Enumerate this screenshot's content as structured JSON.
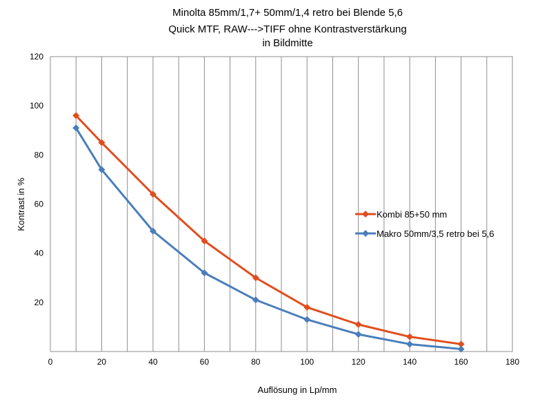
{
  "chart_data": {
    "type": "line",
    "title_lines": [
      "Minolta 85mm/1,7+ 50mm/1,4 retro bei Blende 5,6",
      "Quick MTF,   RAW--->TIFF  ohne Kontrastverstärkung",
      "in Bildmitte"
    ],
    "xlabel": "Auflösung in Lp/mm",
    "ylabel": "Kontrast in %",
    "xlim": [
      0,
      180
    ],
    "ylim": [
      0,
      120
    ],
    "x_ticks": [
      0,
      20,
      40,
      60,
      80,
      100,
      120,
      140,
      160,
      180
    ],
    "y_ticks": [
      20,
      40,
      60,
      80,
      100,
      120
    ],
    "grid": {
      "vertical": true,
      "vertical_step": 10,
      "horizontal": false
    },
    "legend_position": "right",
    "series": [
      {
        "name": "Kombi  85+50 mm",
        "color": "#e04e1f",
        "marker": "diamond",
        "x": [
          10,
          20,
          40,
          60,
          80,
          100,
          120,
          140,
          160
        ],
        "y": [
          96,
          85,
          64,
          45,
          30,
          18,
          11,
          6,
          3
        ]
      },
      {
        "name": "Makro 50mm/3,5 retro bei 5,6",
        "color": "#4a7ebb",
        "marker": "diamond",
        "x": [
          10,
          20,
          40,
          60,
          80,
          100,
          120,
          140,
          160
        ],
        "y": [
          91,
          74,
          49,
          32,
          21,
          13,
          7,
          3,
          1
        ]
      }
    ]
  }
}
